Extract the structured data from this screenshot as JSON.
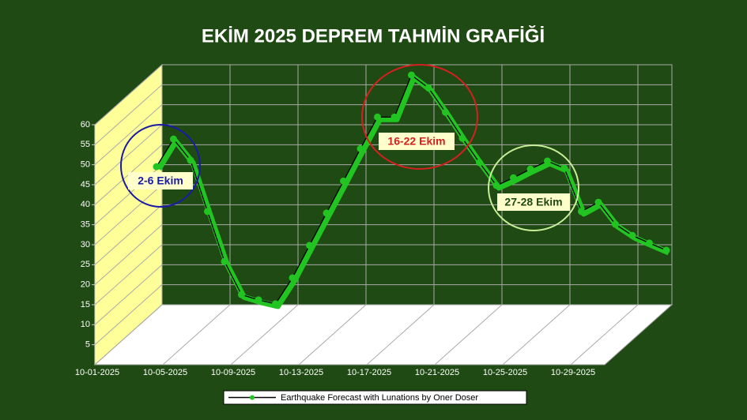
{
  "chart_data": {
    "type": "line",
    "title": "EKİM 2025 DEPREM TAHMİN GRAFİĞİ",
    "categories": [
      "10-01-2025",
      null,
      null,
      null,
      "10-05-2025",
      null,
      null,
      null,
      "10-09-2025",
      null,
      null,
      null,
      "10-13-2025",
      null,
      null,
      null,
      "10-17-2025",
      null,
      null,
      null,
      "10-21-2025",
      null,
      null,
      null,
      "10-25-2025",
      null,
      null,
      null,
      "10-29-2025",
      null,
      null
    ],
    "series": [
      {
        "name": "Earthquake Forecast with Lunations by Oner Doser",
        "color": "#22c422",
        "values": [
          35.7,
          42.6,
          37.3,
          24.5,
          12,
          3.7,
          2.4,
          1.4,
          7.9,
          16,
          24.1,
          32.1,
          40.2,
          48.1,
          48.1,
          58.6,
          55.4,
          49.3,
          42.8,
          36.7,
          31,
          32.9,
          35.1,
          37.1,
          35.3,
          24.5,
          26.8,
          21.3,
          18.5,
          16.6,
          14.8
        ]
      }
    ],
    "ylim": [
      0,
      60
    ],
    "yticks": [
      5,
      10,
      15,
      20,
      25,
      30,
      35,
      40,
      45,
      50,
      55,
      60
    ],
    "grid": true,
    "annotations": [
      {
        "text": "2-6 Ekim",
        "color": "#1a1aa8"
      },
      {
        "text": "16-22 Ekim",
        "color": "#d42020"
      },
      {
        "text": "27-28 Ekim",
        "color": "#c8ee98"
      }
    ]
  }
}
